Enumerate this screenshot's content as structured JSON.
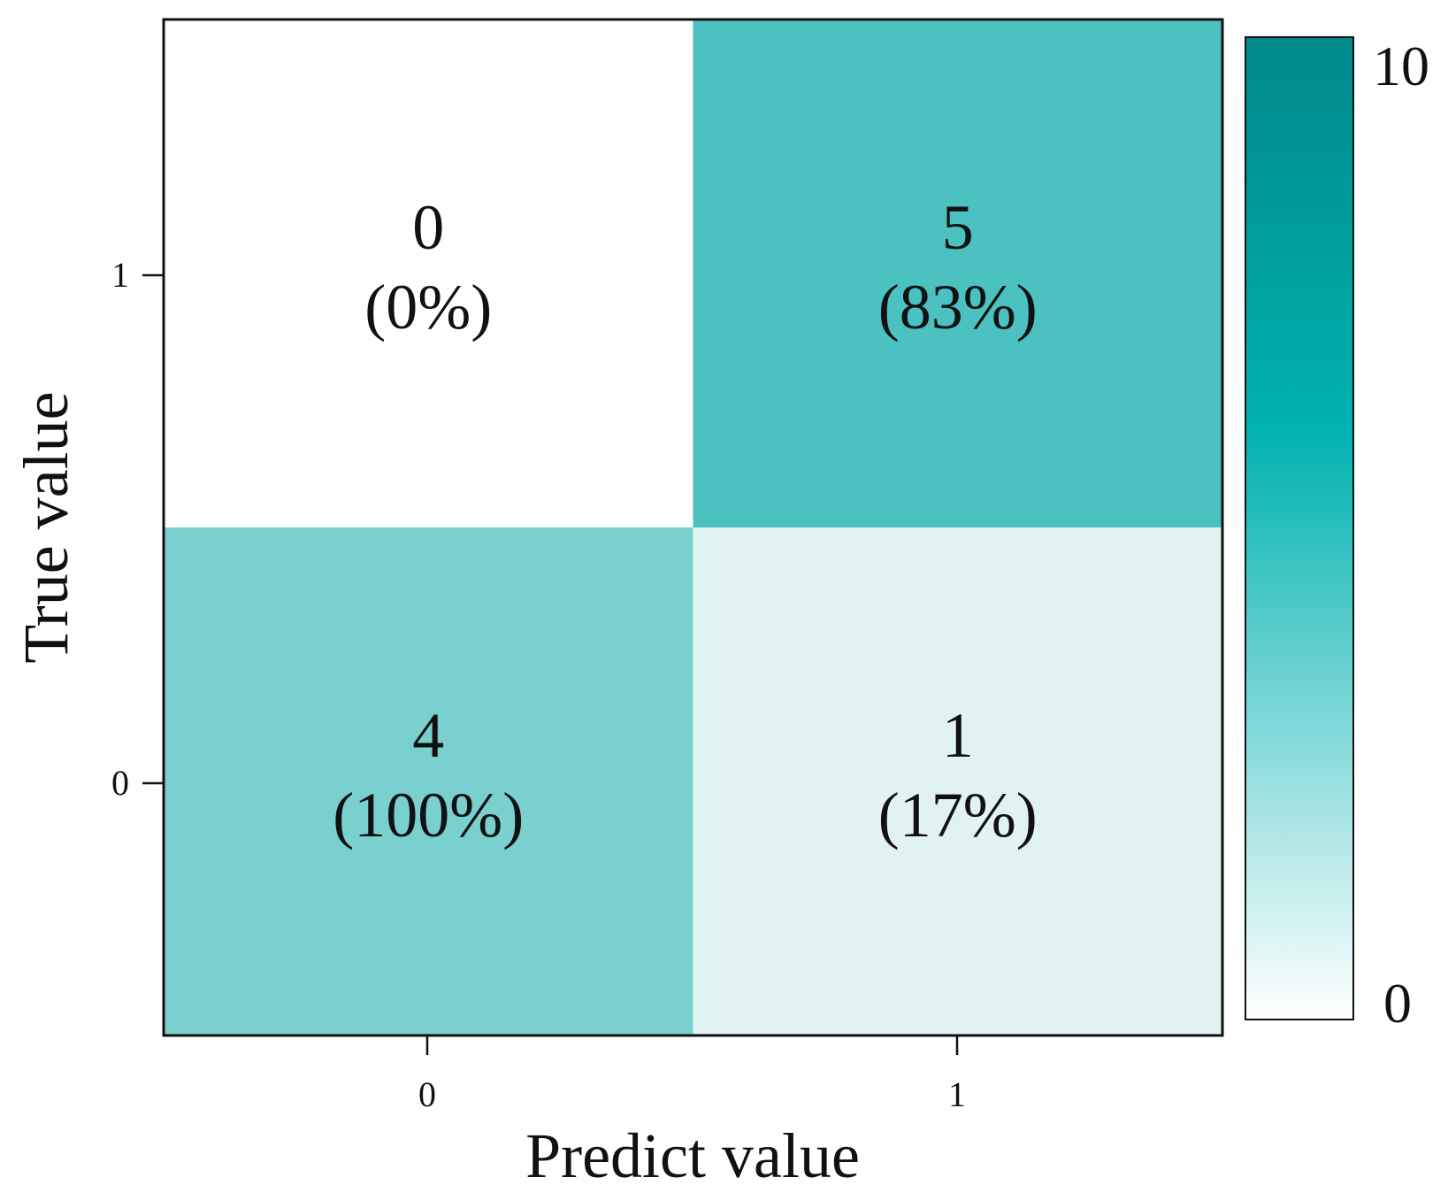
{
  "chart_data": {
    "type": "heatmap",
    "xlabel": "Predict value",
    "ylabel": "True value",
    "x_categories": [
      "0",
      "1"
    ],
    "y_categories": [
      "1",
      "0"
    ],
    "cells": [
      {
        "true": "1",
        "predict": "0",
        "count": 0,
        "count_label": "0",
        "percent_label": "(0%)"
      },
      {
        "true": "1",
        "predict": "1",
        "count": 5,
        "count_label": "5",
        "percent_label": "(83%)"
      },
      {
        "true": "0",
        "predict": "0",
        "count": 4,
        "count_label": "4",
        "percent_label": "(100%)"
      },
      {
        "true": "0",
        "predict": "1",
        "count": 1,
        "count_label": "1",
        "percent_label": "(17%)"
      }
    ],
    "colorbar": {
      "min": 0,
      "max": 10,
      "min_label": "0",
      "max_label": "10",
      "color_low": "#ffffff",
      "color_mid": "#00b2b0",
      "color_high": "#00898a"
    },
    "cell_colors": {
      "c_1_0": "#ffffff",
      "c_1_1": "#4bc1c1",
      "c_0_0": "#79d0cf",
      "c_0_1": "#e0f2f2"
    }
  }
}
